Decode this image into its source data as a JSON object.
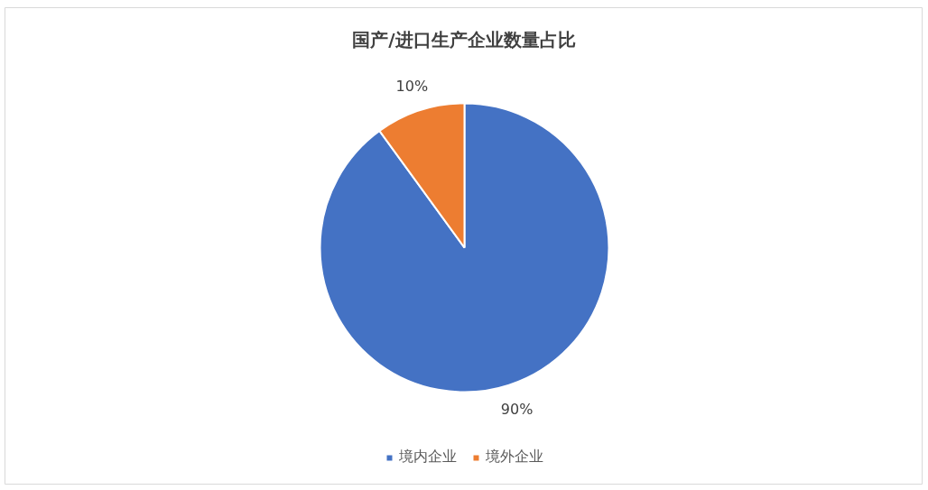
{
  "chart_data": {
    "type": "pie",
    "title": "国产/进口生产企业数量占比",
    "categories": [
      "境内企业",
      "境外企业"
    ],
    "values": [
      90,
      10
    ],
    "colors": [
      "#4472c4",
      "#ed7d31"
    ],
    "value_labels": [
      "90%",
      "10%"
    ],
    "legend": "bottom"
  }
}
